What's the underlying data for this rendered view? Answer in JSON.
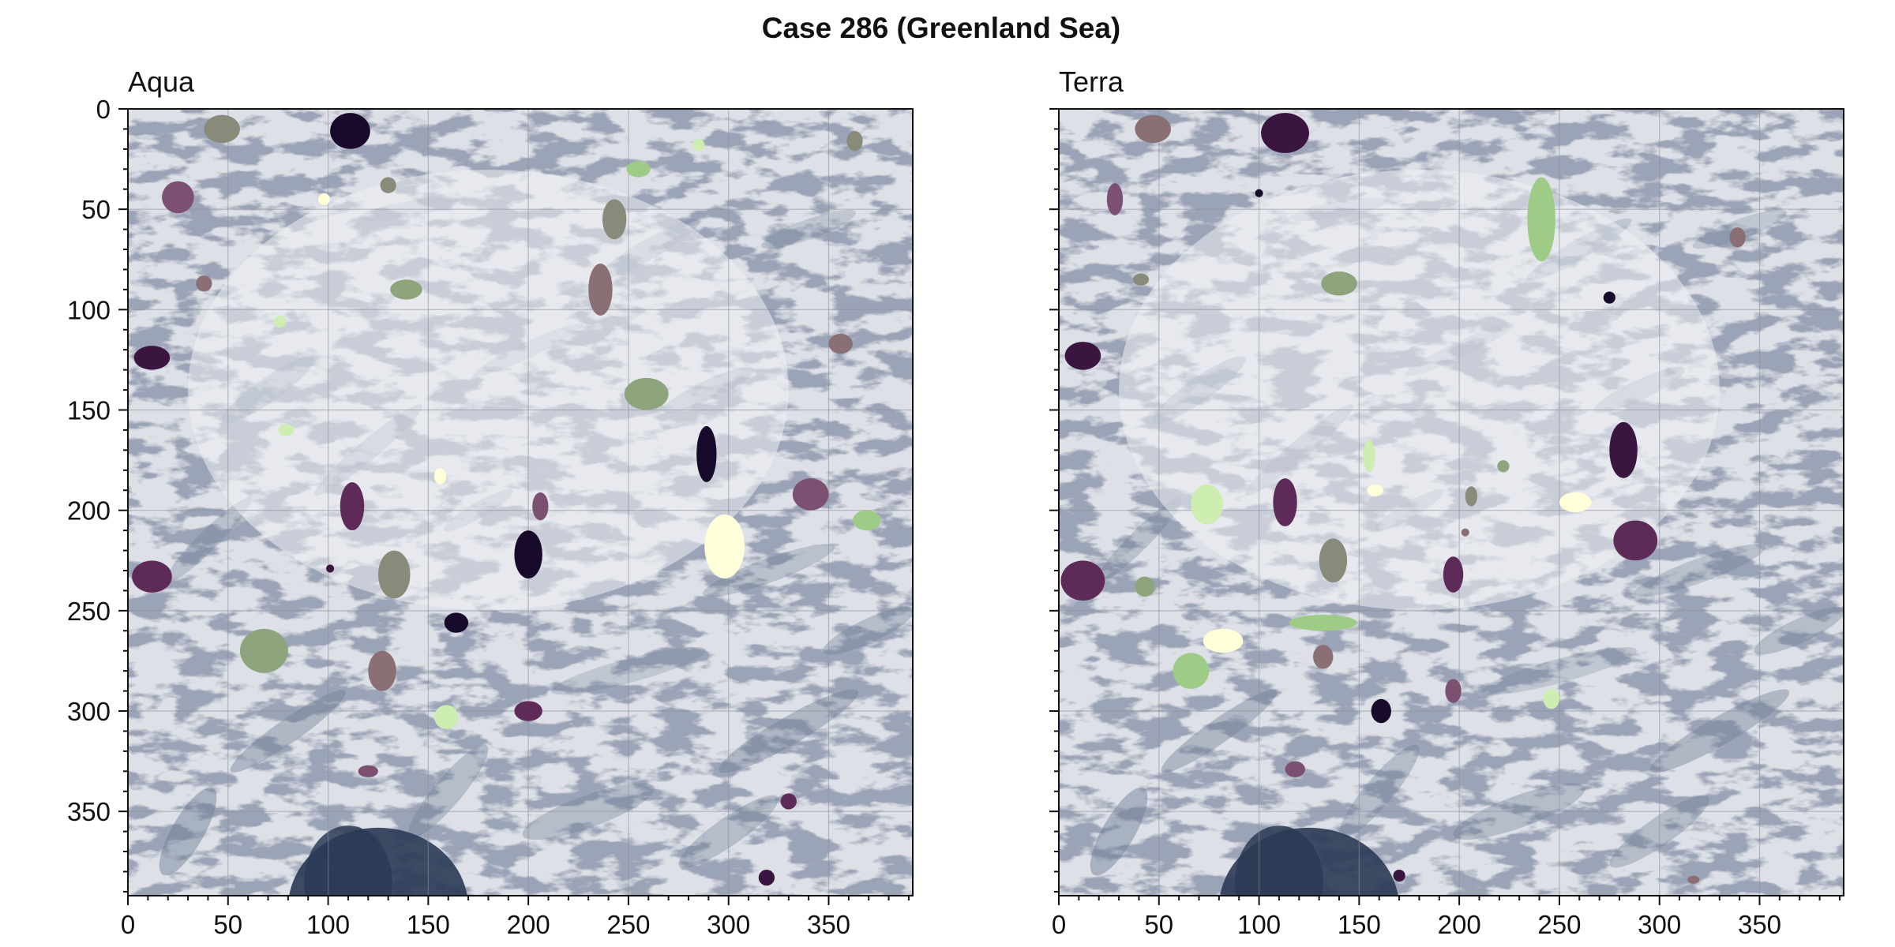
{
  "figure": {
    "title": "Case 286 (Greenland Sea)"
  },
  "palette": {
    "ice_background": "#dde0e6",
    "cloud_white": "#eef0f4",
    "open_water": "#2a3a55",
    "streak_dark": "#6b7a92",
    "grid": "#8a8f98",
    "floe_colors": [
      "#170a2a",
      "#3a1540",
      "#5e2b58",
      "#7c5070",
      "#8a6f75",
      "#888a7a",
      "#8da47c",
      "#9ecc86",
      "#cdeeb0",
      "#ffffd9"
    ]
  },
  "chart_data": [
    {
      "type": "image_overlay",
      "title": "Aqua",
      "xlim": [
        0,
        392
      ],
      "ylim": [
        392,
        0
      ],
      "xticks": [
        0,
        50,
        100,
        150,
        200,
        250,
        300,
        350
      ],
      "yticks": [
        0,
        50,
        100,
        150,
        200,
        250,
        300,
        350
      ],
      "grid": true,
      "floes": [
        {
          "x": 47,
          "y": 10,
          "rx": 9,
          "ry": 7,
          "color": 5
        },
        {
          "x": 111,
          "y": 11,
          "rx": 10,
          "ry": 9,
          "color": 0
        },
        {
          "x": 25,
          "y": 44,
          "rx": 8,
          "ry": 8,
          "color": 3
        },
        {
          "x": 130,
          "y": 38,
          "rx": 4,
          "ry": 4,
          "color": 5
        },
        {
          "x": 98,
          "y": 45,
          "rx": 3,
          "ry": 3,
          "color": 9
        },
        {
          "x": 38,
          "y": 87,
          "rx": 4,
          "ry": 4,
          "color": 4
        },
        {
          "x": 139,
          "y": 90,
          "rx": 8,
          "ry": 5,
          "color": 6
        },
        {
          "x": 76,
          "y": 106,
          "rx": 3,
          "ry": 3,
          "color": 8
        },
        {
          "x": 12,
          "y": 124,
          "rx": 9,
          "ry": 6,
          "color": 1
        },
        {
          "x": 79,
          "y": 160,
          "rx": 4,
          "ry": 3,
          "color": 8
        },
        {
          "x": 255,
          "y": 30,
          "rx": 6,
          "ry": 4,
          "color": 7
        },
        {
          "x": 285,
          "y": 18,
          "rx": 3,
          "ry": 3,
          "color": 8
        },
        {
          "x": 363,
          "y": 16,
          "rx": 4,
          "ry": 5,
          "color": 5
        },
        {
          "x": 243,
          "y": 55,
          "rx": 6,
          "ry": 10,
          "color": 5
        },
        {
          "x": 236,
          "y": 90,
          "rx": 6,
          "ry": 13,
          "color": 4
        },
        {
          "x": 259,
          "y": 142,
          "rx": 11,
          "ry": 8,
          "color": 6
        },
        {
          "x": 356,
          "y": 117,
          "rx": 6,
          "ry": 5,
          "color": 4
        },
        {
          "x": 289,
          "y": 172,
          "rx": 5,
          "ry": 14,
          "color": 0
        },
        {
          "x": 156,
          "y": 183,
          "rx": 3,
          "ry": 4,
          "color": 9
        },
        {
          "x": 112,
          "y": 198,
          "rx": 6,
          "ry": 12,
          "color": 2
        },
        {
          "x": 206,
          "y": 198,
          "rx": 4,
          "ry": 7,
          "color": 3
        },
        {
          "x": 341,
          "y": 192,
          "rx": 9,
          "ry": 8,
          "color": 3
        },
        {
          "x": 369,
          "y": 205,
          "rx": 7,
          "ry": 5,
          "color": 7
        },
        {
          "x": 298,
          "y": 218,
          "rx": 10,
          "ry": 16,
          "color": 9
        },
        {
          "x": 200,
          "y": 222,
          "rx": 7,
          "ry": 12,
          "color": 0
        },
        {
          "x": 133,
          "y": 232,
          "rx": 8,
          "ry": 12,
          "color": 5
        },
        {
          "x": 101,
          "y": 229,
          "rx": 2,
          "ry": 2,
          "color": 1
        },
        {
          "x": 12,
          "y": 233,
          "rx": 10,
          "ry": 8,
          "color": 2
        },
        {
          "x": 164,
          "y": 256,
          "rx": 6,
          "ry": 5,
          "color": 0
        },
        {
          "x": 68,
          "y": 270,
          "rx": 12,
          "ry": 11,
          "color": 6
        },
        {
          "x": 127,
          "y": 280,
          "rx": 7,
          "ry": 10,
          "color": 4
        },
        {
          "x": 200,
          "y": 300,
          "rx": 7,
          "ry": 5,
          "color": 2
        },
        {
          "x": 159,
          "y": 303,
          "rx": 6,
          "ry": 6,
          "color": 8
        },
        {
          "x": 120,
          "y": 330,
          "rx": 5,
          "ry": 3,
          "color": 3
        },
        {
          "x": 330,
          "y": 345,
          "rx": 4,
          "ry": 4,
          "color": 2
        },
        {
          "x": 319,
          "y": 383,
          "rx": 4,
          "ry": 4,
          "color": 1
        }
      ]
    },
    {
      "type": "image_overlay",
      "title": "Terra",
      "xlim": [
        0,
        392
      ],
      "ylim": [
        392,
        0
      ],
      "xticks": [
        0,
        50,
        100,
        150,
        200,
        250,
        300,
        350
      ],
      "yticks": [
        0,
        50,
        100,
        150,
        200,
        250,
        300,
        350
      ],
      "grid": true,
      "floes": [
        {
          "x": 47,
          "y": 10,
          "rx": 9,
          "ry": 7,
          "color": 4
        },
        {
          "x": 113,
          "y": 12,
          "rx": 12,
          "ry": 10,
          "color": 1
        },
        {
          "x": 28,
          "y": 45,
          "rx": 4,
          "ry": 8,
          "color": 3
        },
        {
          "x": 100,
          "y": 42,
          "rx": 2,
          "ry": 2,
          "color": 0
        },
        {
          "x": 41,
          "y": 85,
          "rx": 4,
          "ry": 3,
          "color": 5
        },
        {
          "x": 140,
          "y": 87,
          "rx": 9,
          "ry": 6,
          "color": 6
        },
        {
          "x": 12,
          "y": 123,
          "rx": 9,
          "ry": 7,
          "color": 1
        },
        {
          "x": 241,
          "y": 55,
          "rx": 7,
          "ry": 21,
          "color": 7
        },
        {
          "x": 275,
          "y": 94,
          "rx": 3,
          "ry": 3,
          "color": 0
        },
        {
          "x": 339,
          "y": 64,
          "rx": 4,
          "ry": 5,
          "color": 4
        },
        {
          "x": 155,
          "y": 173,
          "rx": 3,
          "ry": 8,
          "color": 8
        },
        {
          "x": 158,
          "y": 190,
          "rx": 4,
          "ry": 3,
          "color": 9
        },
        {
          "x": 74,
          "y": 197,
          "rx": 8,
          "ry": 10,
          "color": 8
        },
        {
          "x": 113,
          "y": 196,
          "rx": 6,
          "ry": 12,
          "color": 2
        },
        {
          "x": 222,
          "y": 178,
          "rx": 3,
          "ry": 3,
          "color": 6
        },
        {
          "x": 206,
          "y": 193,
          "rx": 3,
          "ry": 5,
          "color": 5
        },
        {
          "x": 282,
          "y": 170,
          "rx": 7,
          "ry": 14,
          "color": 1
        },
        {
          "x": 258,
          "y": 196,
          "rx": 8,
          "ry": 5,
          "color": 9
        },
        {
          "x": 203,
          "y": 211,
          "rx": 2,
          "ry": 2,
          "color": 4
        },
        {
          "x": 288,
          "y": 215,
          "rx": 11,
          "ry": 10,
          "color": 2
        },
        {
          "x": 137,
          "y": 225,
          "rx": 7,
          "ry": 11,
          "color": 5
        },
        {
          "x": 197,
          "y": 232,
          "rx": 5,
          "ry": 9,
          "color": 2
        },
        {
          "x": 43,
          "y": 238,
          "rx": 5,
          "ry": 5,
          "color": 6
        },
        {
          "x": 12,
          "y": 235,
          "rx": 11,
          "ry": 10,
          "color": 2
        },
        {
          "x": 82,
          "y": 265,
          "rx": 10,
          "ry": 6,
          "color": 9
        },
        {
          "x": 132,
          "y": 256,
          "rx": 17,
          "ry": 4,
          "color": 7
        },
        {
          "x": 66,
          "y": 280,
          "rx": 9,
          "ry": 9,
          "color": 7
        },
        {
          "x": 132,
          "y": 273,
          "rx": 5,
          "ry": 6,
          "color": 4
        },
        {
          "x": 197,
          "y": 290,
          "rx": 4,
          "ry": 6,
          "color": 3
        },
        {
          "x": 246,
          "y": 294,
          "rx": 4,
          "ry": 5,
          "color": 8
        },
        {
          "x": 161,
          "y": 300,
          "rx": 5,
          "ry": 6,
          "color": 0
        },
        {
          "x": 118,
          "y": 329,
          "rx": 5,
          "ry": 4,
          "color": 3
        },
        {
          "x": 170,
          "y": 382,
          "rx": 3,
          "ry": 3,
          "color": 1
        },
        {
          "x": 317,
          "y": 384,
          "rx": 3,
          "ry": 2,
          "color": 4
        }
      ]
    }
  ]
}
